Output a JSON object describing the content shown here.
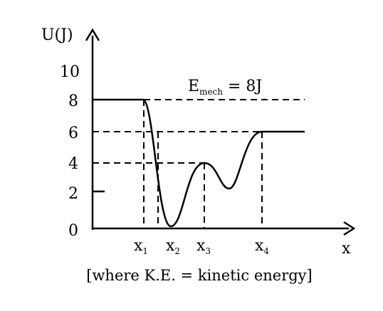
{
  "diagram": {
    "y_axis_label": "U(J)",
    "x_axis_label": "x",
    "y_ticks": [
      "0",
      "2",
      "4",
      "6",
      "8",
      "10"
    ],
    "x_markers": [
      {
        "base": "x",
        "sub": "1"
      },
      {
        "base": "x",
        "sub": "2"
      },
      {
        "base": "x",
        "sub": "3"
      },
      {
        "base": "x",
        "sub": "4"
      }
    ],
    "energy_label": {
      "prefix": "E",
      "sub": "mech",
      "suffix": " = 8J"
    },
    "caption": "[where K.E. = kinetic energy]"
  }
}
